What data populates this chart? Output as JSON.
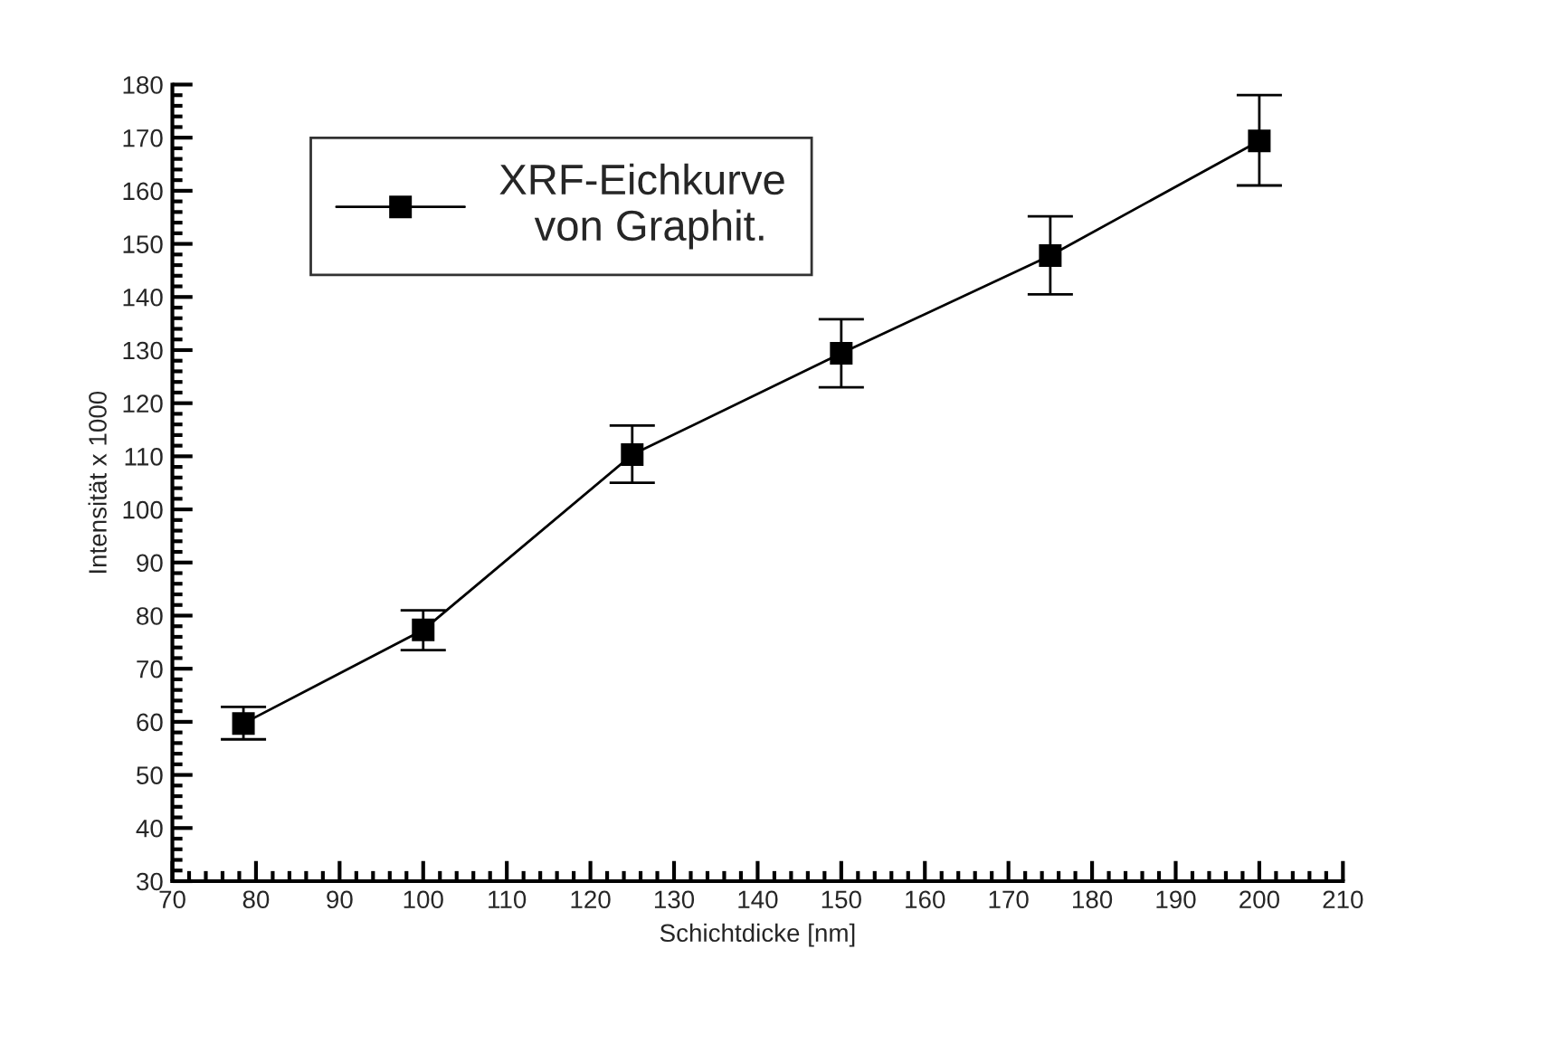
{
  "chart_data": {
    "type": "line",
    "xlabel": "Schichtdicke [nm]",
    "ylabel": "Intensität x 1000",
    "x": [
      78.5,
      100,
      125,
      150,
      175,
      200
    ],
    "series": [
      {
        "name": "XRF-Eichkurve\n   von Graphit.",
        "color": "#000000",
        "values": [
          59.7,
          77.3,
          110.3,
          129.4,
          147.8,
          169.4
        ],
        "errors": [
          [
            56.7,
            62.8
          ],
          [
            73.5,
            81.0
          ],
          [
            105.0,
            115.8
          ],
          [
            123.0,
            135.8
          ],
          [
            140.5,
            155.2
          ],
          [
            161.0,
            178.0
          ]
        ]
      }
    ],
    "xlim": [
      70,
      210
    ],
    "xticks": [
      70,
      80,
      90,
      100,
      110,
      120,
      130,
      140,
      150,
      160,
      170,
      180,
      190,
      200,
      210
    ],
    "ylim": [
      30,
      180
    ],
    "yticks": [
      30,
      40,
      50,
      60,
      70,
      80,
      90,
      100,
      110,
      120,
      130,
      140,
      150,
      160,
      170,
      180
    ],
    "marker": "square",
    "line_style": "solid",
    "grid": false,
    "legend": "top left"
  }
}
